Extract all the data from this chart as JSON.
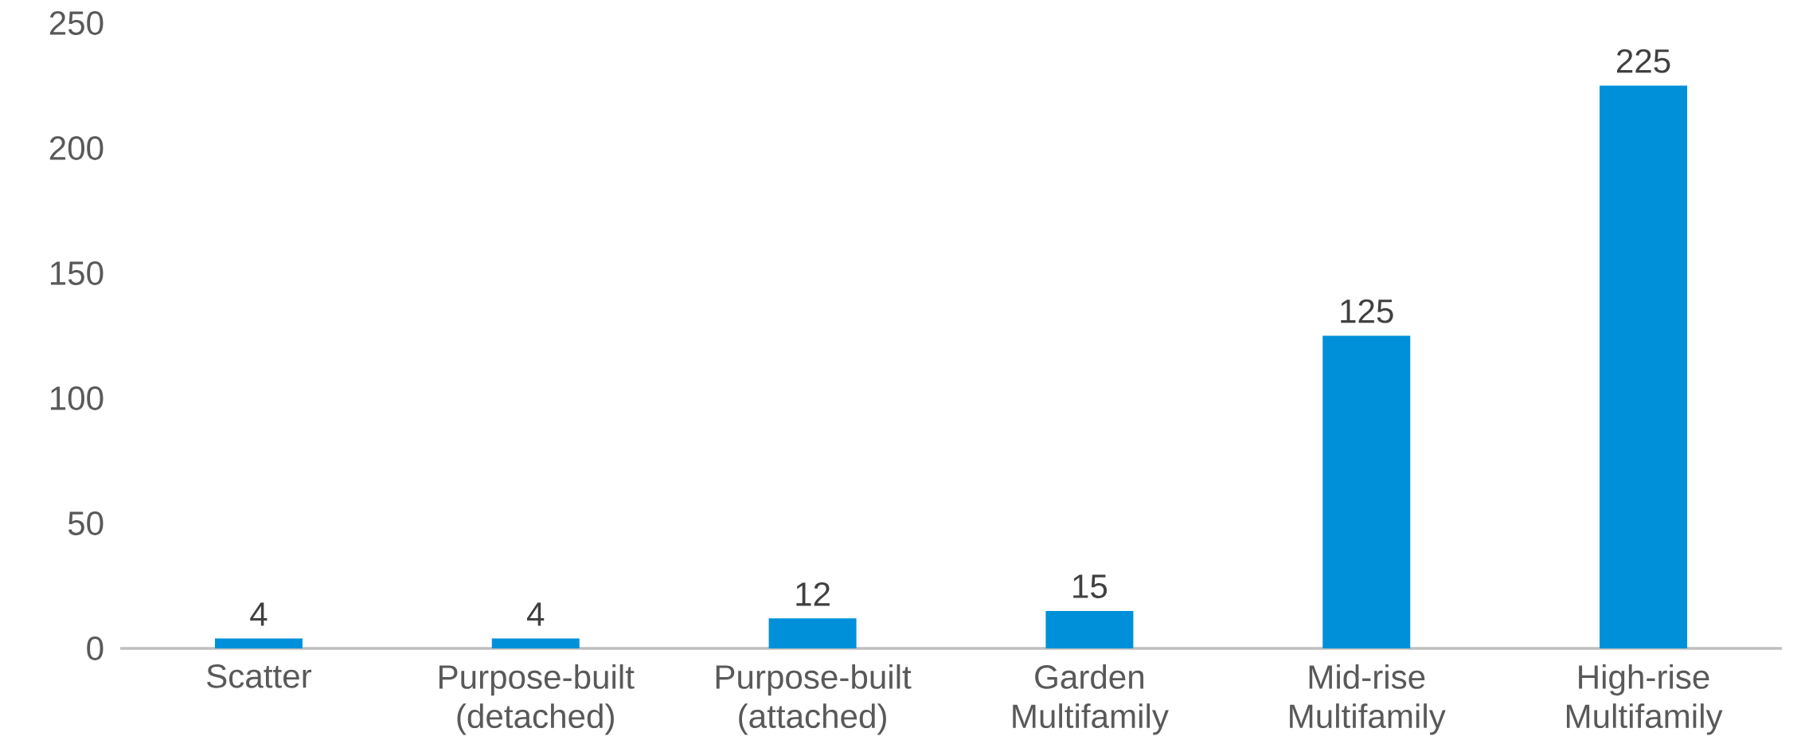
{
  "chart_data": {
    "type": "bar",
    "categories": [
      "Scatter",
      "Purpose-built (detached)",
      "Purpose-built (attached)",
      "Garden Multifamily",
      "Mid-rise Multifamily",
      "High-rise Multifamily"
    ],
    "values": [
      4,
      4,
      12,
      15,
      125,
      225
    ],
    "color": "#0090d9",
    "ylim": [
      0,
      250
    ],
    "yticks": [
      0,
      50,
      100,
      150,
      200,
      250
    ],
    "data_labels": true
  }
}
